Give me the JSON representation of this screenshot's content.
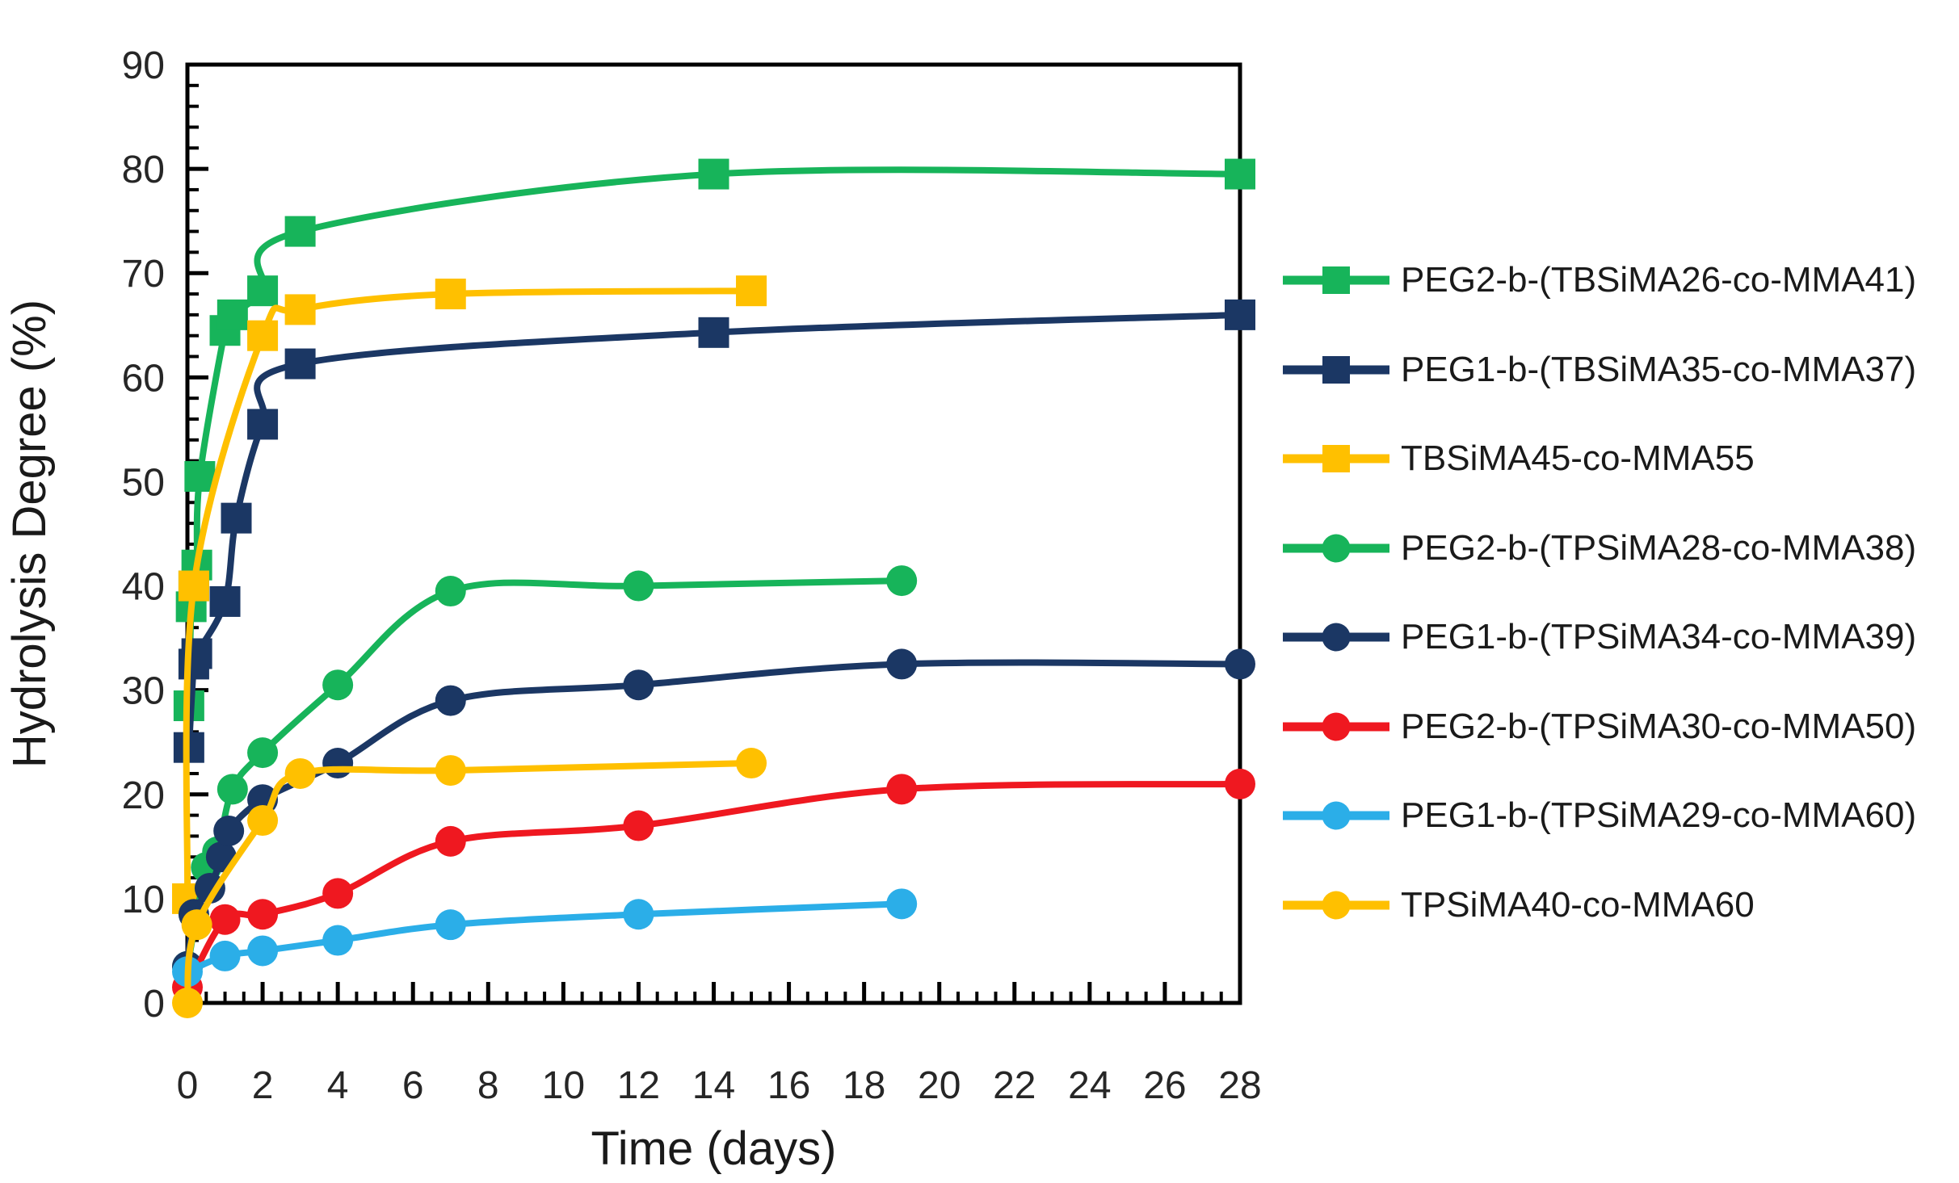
{
  "chart_data": {
    "type": "line",
    "title": "",
    "xlabel": "Time (days)",
    "ylabel": "Hydrolysis Degree (%)",
    "xlim": [
      0,
      28
    ],
    "ylim": [
      0,
      90
    ],
    "x_major_tick": 2,
    "x_minor_tick": 0.5,
    "y_major_tick": 10,
    "y_minor_tick": 2,
    "grid": false,
    "legend_position": "right",
    "axis_color": "#000000",
    "tick_label_color": "#262626",
    "series": [
      {
        "name": "PEG2-b-(TBSiMA26-co-MMA41)",
        "color": "#17B45A",
        "marker": "square",
        "points": [
          [
            0.04,
            28.5
          ],
          [
            0.1,
            38
          ],
          [
            0.17,
            40
          ],
          [
            0.25,
            42
          ],
          [
            0.33,
            50.5
          ],
          [
            1,
            64.5
          ],
          [
            1.2,
            66
          ],
          [
            2,
            68.3
          ],
          [
            3,
            74
          ],
          [
            14,
            79.5
          ],
          [
            28,
            79.5
          ]
        ]
      },
      {
        "name": "PEG1-b-(TBSiMA35-co-MMA37)",
        "color": "#1B3764",
        "marker": "square",
        "points": [
          [
            0.04,
            24.5
          ],
          [
            0.17,
            32.5
          ],
          [
            0.25,
            33.5
          ],
          [
            1,
            38.5
          ],
          [
            1.3,
            46.5
          ],
          [
            2,
            55.5
          ],
          [
            3,
            61.3
          ],
          [
            14,
            64.3
          ],
          [
            28,
            66
          ]
        ]
      },
      {
        "name": "TBSiMA45-co-MMA55",
        "color": "#FFC000",
        "marker": "square",
        "points": [
          [
            0,
            10
          ],
          [
            0.17,
            40
          ],
          [
            2,
            64
          ],
          [
            3,
            66.5
          ],
          [
            7,
            68
          ],
          [
            15,
            68.3
          ]
        ]
      },
      {
        "name": "PEG2-b-(TPSiMA28-co-MMA38)",
        "color": "#17B45A",
        "marker": "circle",
        "points": [
          [
            0,
            3.5
          ],
          [
            0.5,
            13
          ],
          [
            0.8,
            14.5
          ],
          [
            1.2,
            20.5
          ],
          [
            2,
            24
          ],
          [
            4,
            30.5
          ],
          [
            7,
            39.5
          ],
          [
            12,
            40
          ],
          [
            19,
            40.5
          ]
        ]
      },
      {
        "name": "PEG1-b-(TPSiMA34-co-MMA39)",
        "color": "#1B3764",
        "marker": "circle",
        "points": [
          [
            0,
            3.5
          ],
          [
            0.17,
            8.5
          ],
          [
            0.6,
            11
          ],
          [
            0.9,
            14
          ],
          [
            1.1,
            16.5
          ],
          [
            2,
            19.5
          ],
          [
            4,
            23
          ],
          [
            7,
            29
          ],
          [
            12,
            30.5
          ],
          [
            19,
            32.5
          ],
          [
            28,
            32.5
          ]
        ]
      },
      {
        "name": "PEG2-b-(TPSiMA30-co-MMA50)",
        "color": "#EF1820",
        "marker": "circle",
        "points": [
          [
            0,
            1.5
          ],
          [
            1,
            8
          ],
          [
            2,
            8.5
          ],
          [
            4,
            10.5
          ],
          [
            7,
            15.5
          ],
          [
            12,
            17
          ],
          [
            19,
            20.5
          ],
          [
            28,
            21
          ]
        ]
      },
      {
        "name": "PEG1-b-(TPSiMA29-co-MMA60)",
        "color": "#2BAEE8",
        "marker": "circle",
        "points": [
          [
            0,
            3
          ],
          [
            1,
            4.5
          ],
          [
            2,
            5
          ],
          [
            4,
            6
          ],
          [
            7,
            7.5
          ],
          [
            12,
            8.5
          ],
          [
            19,
            9.5
          ]
        ]
      },
      {
        "name": "TPSiMA40-co-MMA60",
        "color": "#FFC000",
        "marker": "circle",
        "points": [
          [
            0,
            0
          ],
          [
            0.25,
            7.5
          ],
          [
            2,
            17.5
          ],
          [
            3,
            22
          ],
          [
            7,
            22.3
          ],
          [
            15,
            23
          ]
        ]
      }
    ]
  }
}
